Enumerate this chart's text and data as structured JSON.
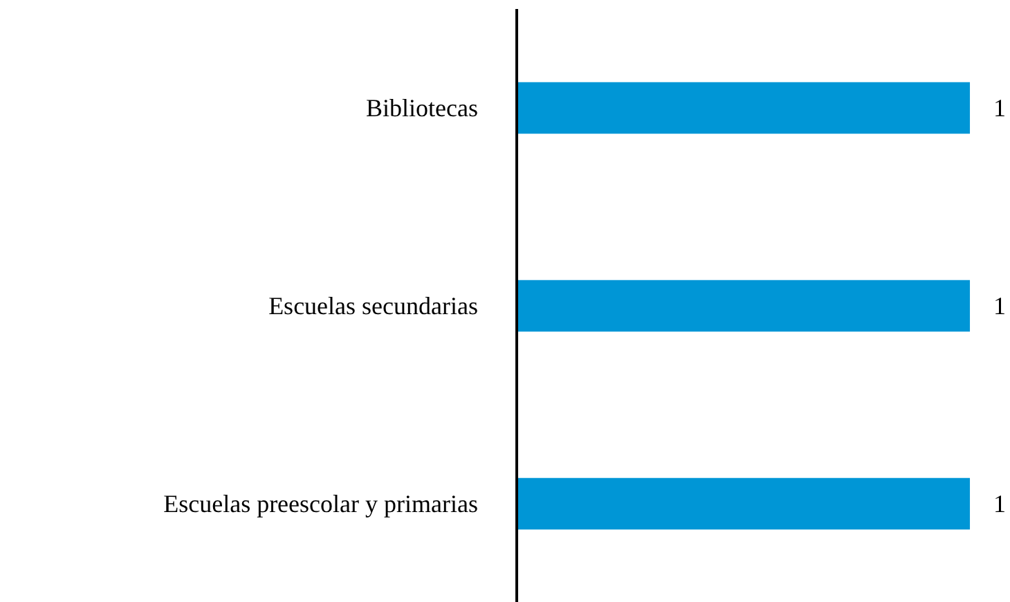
{
  "chart_data": {
    "type": "bar",
    "orientation": "horizontal",
    "categories": [
      "Bibliotecas",
      "Escuelas secundarias",
      "Escuelas preescolar y primarias"
    ],
    "values": [
      1,
      1,
      1
    ],
    "color": "#0096d6",
    "data_labels": true,
    "grid": false,
    "tick_labels": "y"
  }
}
